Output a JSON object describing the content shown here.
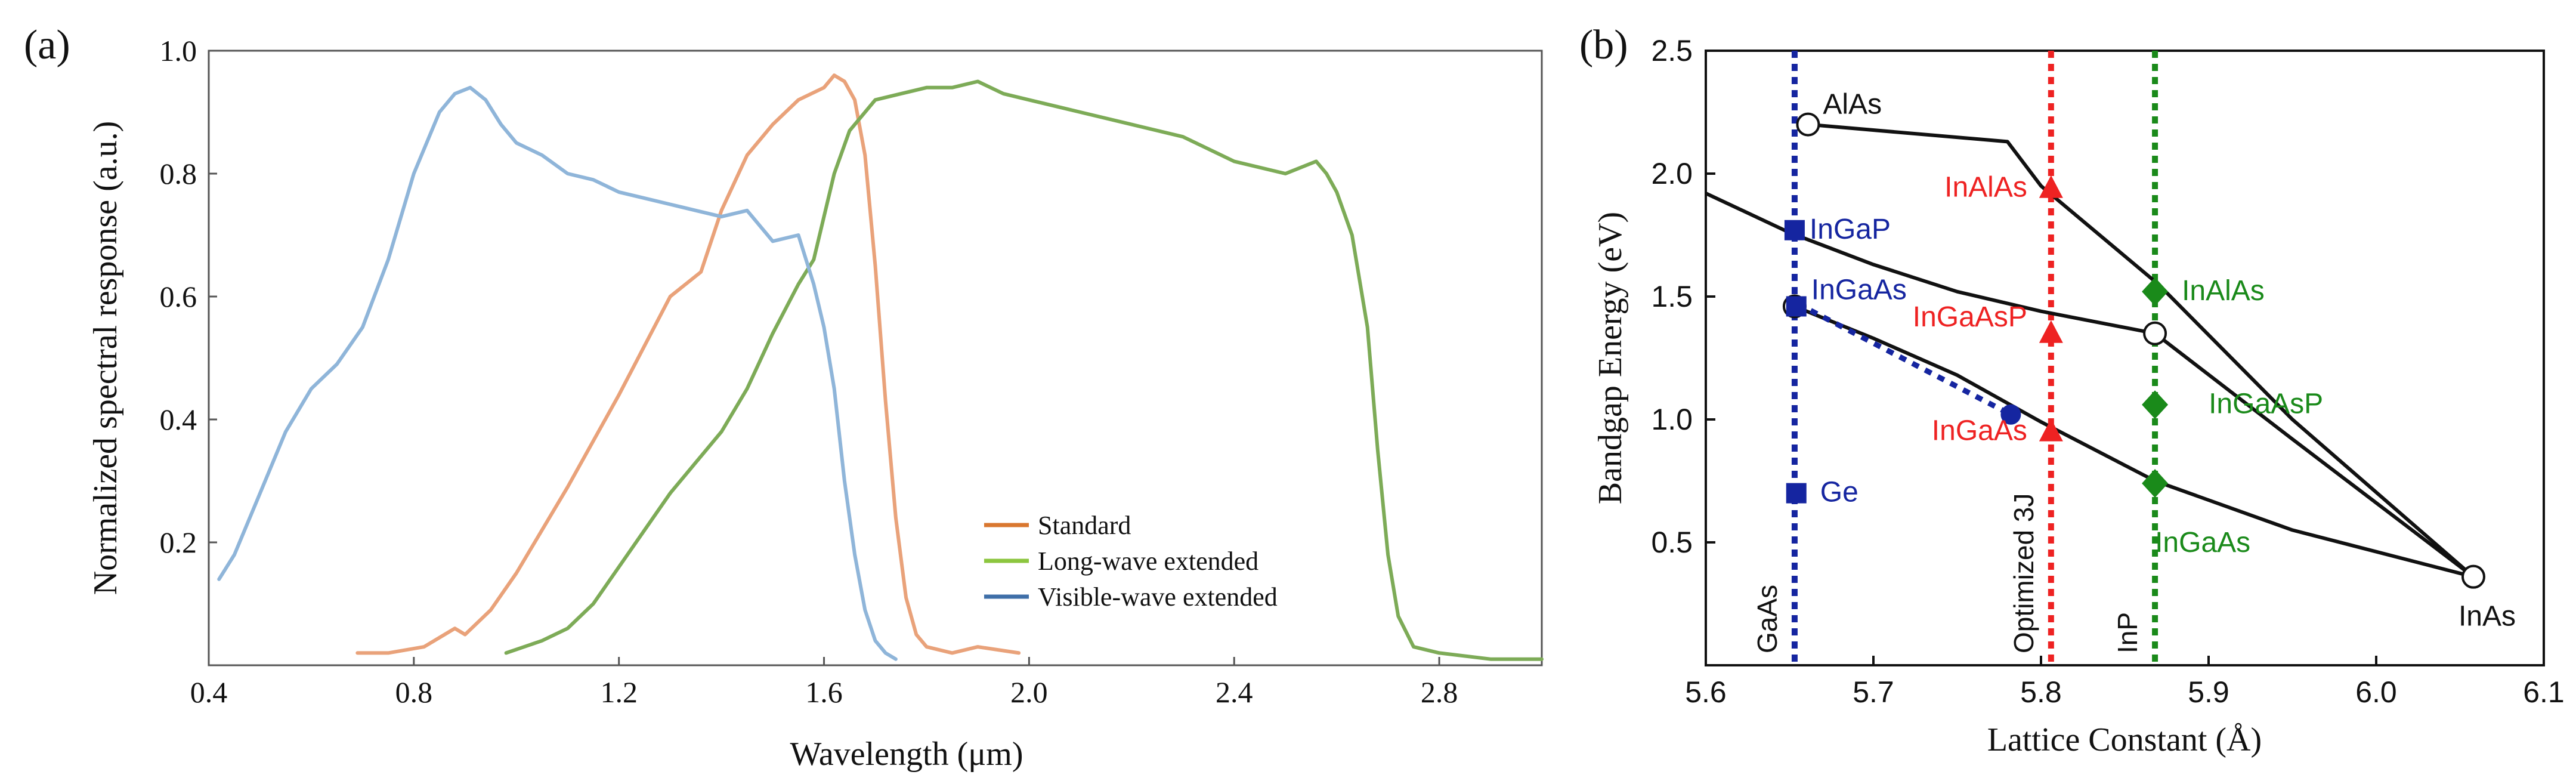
{
  "chart_data": [
    {
      "type": "line",
      "panel_label": "(a)",
      "xlabel": "Wavelength (μm)",
      "ylabel": "Normalized spectral response (a.u.)",
      "xlim": [
        0.4,
        3.0
      ],
      "ylim": [
        0.0,
        1.0
      ],
      "xticks": [
        "0.4",
        "0.8",
        "1.2",
        "1.6",
        "2.0",
        "2.4",
        "2.8"
      ],
      "xtick_values": [
        0.4,
        0.8,
        1.2,
        1.6,
        2.0,
        2.4,
        2.8
      ],
      "yticks": [
        "0.2",
        "0.4",
        "0.6",
        "0.8",
        "1.0"
      ],
      "ytick_values": [
        0.2,
        0.4,
        0.6,
        0.8,
        1.0
      ],
      "legend_position": "bottom-right",
      "series": [
        {
          "name": "Standard",
          "color": "#e9a27a",
          "legend_color": "#d9772f",
          "x": [
            0.69,
            0.75,
            0.82,
            0.86,
            0.88,
            0.9,
            0.95,
            1.0,
            1.1,
            1.2,
            1.3,
            1.36,
            1.4,
            1.45,
            1.5,
            1.55,
            1.6,
            1.62,
            1.64,
            1.66,
            1.68,
            1.7,
            1.72,
            1.74,
            1.76,
            1.78,
            1.8,
            1.85,
            1.9,
            1.98
          ],
          "y": [
            0.02,
            0.02,
            0.03,
            0.05,
            0.06,
            0.05,
            0.09,
            0.15,
            0.29,
            0.44,
            0.6,
            0.64,
            0.74,
            0.83,
            0.88,
            0.92,
            0.94,
            0.96,
            0.95,
            0.92,
            0.83,
            0.65,
            0.43,
            0.24,
            0.11,
            0.05,
            0.03,
            0.02,
            0.03,
            0.02
          ]
        },
        {
          "name": "Long-wave extended",
          "color": "#7dab57",
          "legend_color": "#8cc63f",
          "x": [
            0.98,
            1.05,
            1.1,
            1.15,
            1.2,
            1.25,
            1.3,
            1.35,
            1.4,
            1.45,
            1.5,
            1.55,
            1.58,
            1.6,
            1.62,
            1.65,
            1.7,
            1.75,
            1.8,
            1.85,
            1.9,
            1.95,
            2.0,
            2.1,
            2.2,
            2.3,
            2.35,
            2.4,
            2.5,
            2.56,
            2.58,
            2.6,
            2.63,
            2.66,
            2.68,
            2.7,
            2.72,
            2.75,
            2.8,
            2.9,
            3.0
          ],
          "y": [
            0.02,
            0.04,
            0.06,
            0.1,
            0.16,
            0.22,
            0.28,
            0.33,
            0.38,
            0.45,
            0.54,
            0.62,
            0.66,
            0.73,
            0.8,
            0.87,
            0.92,
            0.93,
            0.94,
            0.94,
            0.95,
            0.93,
            0.92,
            0.9,
            0.88,
            0.86,
            0.84,
            0.82,
            0.8,
            0.82,
            0.8,
            0.77,
            0.7,
            0.55,
            0.35,
            0.18,
            0.08,
            0.03,
            0.02,
            0.01,
            0.01
          ]
        },
        {
          "name": "Visible-wave extended",
          "color": "#8fb5d9",
          "legend_color": "#3f6fa8",
          "x": [
            0.42,
            0.45,
            0.5,
            0.55,
            0.6,
            0.65,
            0.7,
            0.75,
            0.8,
            0.85,
            0.88,
            0.91,
            0.94,
            0.97,
            1.0,
            1.05,
            1.1,
            1.15,
            1.2,
            1.25,
            1.3,
            1.35,
            1.4,
            1.45,
            1.5,
            1.55,
            1.58,
            1.6,
            1.62,
            1.64,
            1.66,
            1.68,
            1.7,
            1.72,
            1.74
          ],
          "y": [
            0.14,
            0.18,
            0.28,
            0.38,
            0.45,
            0.49,
            0.55,
            0.66,
            0.8,
            0.9,
            0.93,
            0.94,
            0.92,
            0.88,
            0.85,
            0.83,
            0.8,
            0.79,
            0.77,
            0.76,
            0.75,
            0.74,
            0.73,
            0.74,
            0.69,
            0.7,
            0.62,
            0.55,
            0.45,
            0.3,
            0.18,
            0.09,
            0.04,
            0.02,
            0.01
          ]
        }
      ]
    },
    {
      "type": "scatter",
      "panel_label": "(b)",
      "xlabel": "Lattice Constant (Å)",
      "ylabel": "Bandgap Energy (eV)",
      "xlim": [
        5.6,
        6.1
      ],
      "ylim": [
        0.0,
        2.5
      ],
      "xticks": [
        "5.6",
        "5.7",
        "5.8",
        "5.9",
        "6.0",
        "6.1"
      ],
      "xtick_values": [
        5.6,
        5.7,
        5.8,
        5.9,
        6.0,
        6.1
      ],
      "yticks": [
        "0.5",
        "1.0",
        "1.5",
        "2.0",
        "2.5"
      ],
      "ytick_values": [
        0.5,
        1.0,
        1.5,
        2.0,
        2.5
      ],
      "black_curves": [
        {
          "name": "AlAs-InAs",
          "x": [
            5.661,
            5.78,
            5.8,
            5.87,
            5.95,
            6.058
          ],
          "y": [
            2.2,
            2.13,
            1.95,
            1.55,
            1.0,
            0.36
          ]
        },
        {
          "name": "GaP-branch",
          "x": [
            5.6,
            5.65,
            5.7,
            5.75,
            5.8,
            5.868
          ],
          "y": [
            1.92,
            1.76,
            1.63,
            1.52,
            1.44,
            1.35
          ]
        },
        {
          "name": "InGaAsP-InAs",
          "x": [
            5.868,
            5.95,
            6.058
          ],
          "y": [
            1.35,
            0.92,
            0.36
          ]
        },
        {
          "name": "GaAs-InAs",
          "x": [
            5.653,
            5.7,
            5.75,
            5.8,
            5.868,
            5.95,
            6.058
          ],
          "y": [
            1.46,
            1.33,
            1.18,
            0.99,
            0.75,
            0.55,
            0.36
          ]
        }
      ],
      "dotted_curve": {
        "color": "#1525a0",
        "x": [
          5.655,
          5.782
        ],
        "y": [
          1.47,
          1.02
        ]
      },
      "vertical_lines": [
        {
          "label": "GaAs",
          "x": 5.653,
          "color": "#1525a0"
        },
        {
          "label": "Optimized 3J",
          "x": 5.806,
          "color": "#ee2222"
        },
        {
          "label": "InP",
          "x": 5.868,
          "color": "#1a8a1a"
        }
      ],
      "points": [
        {
          "label": "AlAs",
          "x": 5.661,
          "y": 2.2,
          "marker": "open-circle",
          "color": "#111111"
        },
        {
          "label": "InAs",
          "x": 6.058,
          "y": 0.36,
          "marker": "open-circle",
          "color": "#111111"
        },
        {
          "label": "",
          "x": 5.868,
          "y": 1.35,
          "marker": "open-circle",
          "color": "#111111"
        },
        {
          "label": "",
          "x": 5.653,
          "y": 1.46,
          "marker": "open-circle",
          "color": "#111111"
        },
        {
          "label": "InGaP",
          "x": 5.653,
          "y": 1.77,
          "marker": "square",
          "color": "#1525a0"
        },
        {
          "label": "InGaAs",
          "x": 5.654,
          "y": 1.46,
          "marker": "square",
          "color": "#1525a0"
        },
        {
          "label": "Ge",
          "x": 5.654,
          "y": 0.7,
          "marker": "square",
          "color": "#1525a0"
        },
        {
          "label": "",
          "x": 5.782,
          "y": 1.02,
          "marker": "circle",
          "color": "#1525a0"
        },
        {
          "label": "InAlAs",
          "x": 5.806,
          "y": 1.94,
          "marker": "triangle",
          "color": "#ee2222"
        },
        {
          "label": "InGaAsP",
          "x": 5.806,
          "y": 1.35,
          "marker": "triangle",
          "color": "#ee2222"
        },
        {
          "label": "InGaAs",
          "x": 5.806,
          "y": 0.95,
          "marker": "triangle",
          "color": "#ee2222"
        },
        {
          "label": "InAlAs",
          "x": 5.868,
          "y": 1.52,
          "marker": "diamond",
          "color": "#1a8a1a"
        },
        {
          "label": "InGaAsP",
          "x": 5.868,
          "y": 1.06,
          "marker": "diamond",
          "color": "#1a8a1a"
        },
        {
          "label": "InGaAs",
          "x": 5.868,
          "y": 0.74,
          "marker": "diamond",
          "color": "#1a8a1a"
        }
      ]
    }
  ]
}
